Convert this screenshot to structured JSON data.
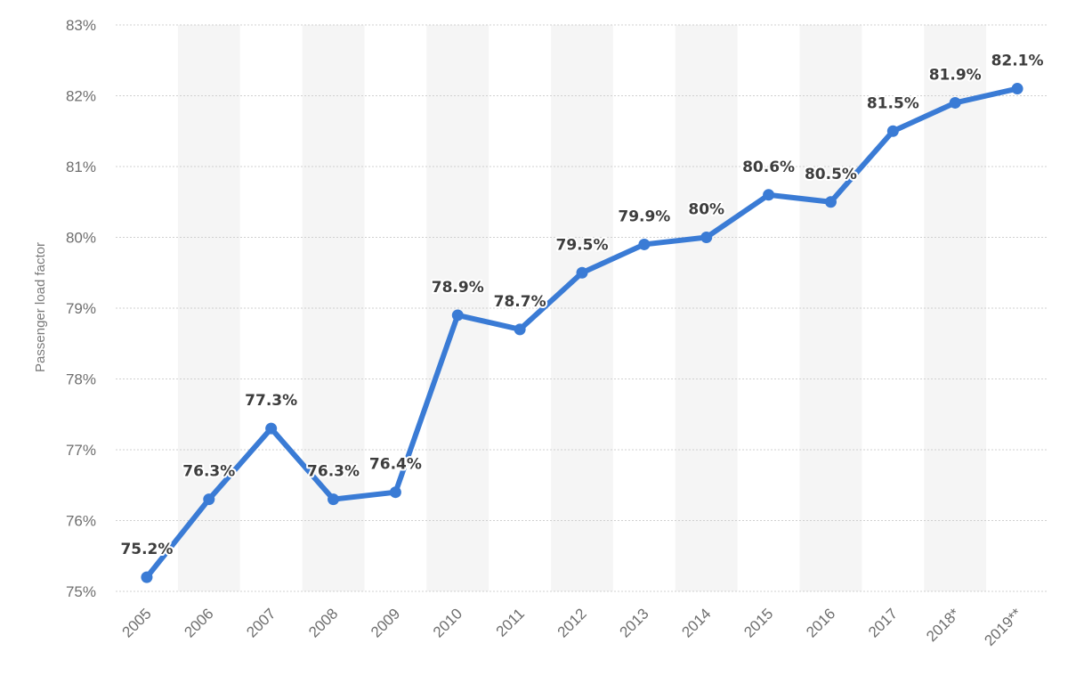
{
  "chart_data": {
    "type": "line",
    "title": "",
    "xlabel": "",
    "ylabel": "Passenger load factor",
    "ylim": [
      75,
      83
    ],
    "yticks": [
      "75%",
      "76%",
      "77%",
      "78%",
      "79%",
      "80%",
      "81%",
      "82%",
      "83%"
    ],
    "grid": true,
    "legend": "none",
    "colors": {
      "line": "#3a7bd5",
      "grid": "#d0d0d0",
      "band": "#f5f5f5"
    },
    "categories": [
      "2005",
      "2006",
      "2007",
      "2008",
      "2009",
      "2010",
      "2011",
      "2012",
      "2013",
      "2014",
      "2015",
      "2016",
      "2017",
      "2018*",
      "2019**"
    ],
    "values": [
      75.2,
      76.3,
      77.3,
      76.3,
      76.4,
      78.9,
      78.7,
      79.5,
      79.9,
      80.0,
      80.6,
      80.5,
      81.5,
      81.9,
      82.1
    ],
    "data_labels": [
      "75.2%",
      "76.3%",
      "77.3%",
      "76.3%",
      "76.4%",
      "78.9%",
      "78.7%",
      "79.5%",
      "79.9%",
      "80%",
      "80.6%",
      "80.5%",
      "81.5%",
      "81.9%",
      "82.1%"
    ]
  }
}
